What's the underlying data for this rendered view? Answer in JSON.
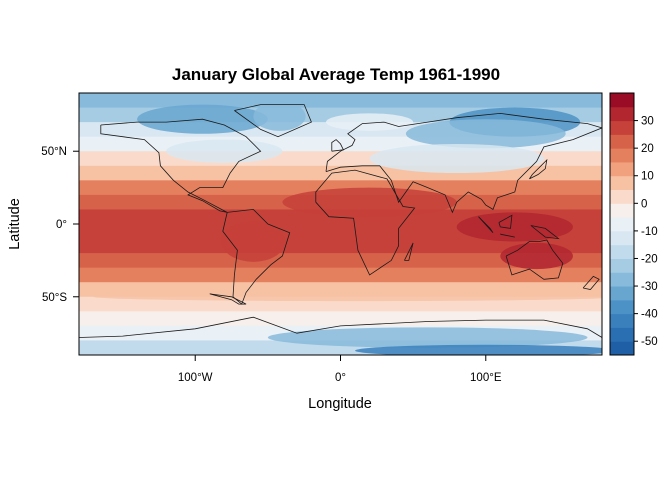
{
  "chart_data": {
    "type": "heatmap",
    "title": "January Global Average Temp 1961-1990",
    "xlabel": "Longitude",
    "ylabel": "Latitude",
    "x_ticks": [
      {
        "value": -100,
        "label": "100°W"
      },
      {
        "value": 0,
        "label": "0°"
      },
      {
        "value": 100,
        "label": "100°E"
      }
    ],
    "y_ticks": [
      {
        "value": 50,
        "label": "50°N"
      },
      {
        "value": 0,
        "label": "0°"
      },
      {
        "value": -50,
        "label": "50°S"
      }
    ],
    "xlim": [
      -180,
      180
    ],
    "ylim": [
      -90,
      90
    ],
    "colorbar": {
      "range": [
        -55,
        40
      ],
      "ticks": [
        30,
        20,
        10,
        0,
        -10,
        -20,
        -30,
        -40,
        -50
      ],
      "tick_labels": [
        "30",
        "20",
        "10",
        "0",
        "-10",
        "-20",
        "-30",
        "-40",
        "-50"
      ],
      "bins": [
        {
          "from": -55,
          "to": -50,
          "color": "#1e5fa6"
        },
        {
          "from": -50,
          "to": -45,
          "color": "#2b6fb3"
        },
        {
          "from": -45,
          "to": -40,
          "color": "#3a80bd"
        },
        {
          "from": -40,
          "to": -35,
          "color": "#4d92c6"
        },
        {
          "from": -35,
          "to": -30,
          "color": "#68a6d0"
        },
        {
          "from": -30,
          "to": -25,
          "color": "#87badb"
        },
        {
          "from": -25,
          "to": -20,
          "color": "#a6cce4"
        },
        {
          "from": -20,
          "to": -15,
          "color": "#c2dbec"
        },
        {
          "from": -15,
          "to": -10,
          "color": "#d8e7f1"
        },
        {
          "from": -10,
          "to": -5,
          "color": "#e9f0f6"
        },
        {
          "from": -5,
          "to": 0,
          "color": "#f6efeb"
        },
        {
          "from": 0,
          "to": 5,
          "color": "#fadbcb"
        },
        {
          "from": 5,
          "to": 10,
          "color": "#f7c2a4"
        },
        {
          "from": 10,
          "to": 15,
          "color": "#f1a17e"
        },
        {
          "from": 15,
          "to": 20,
          "color": "#e5805f"
        },
        {
          "from": 20,
          "to": 25,
          "color": "#d66249"
        },
        {
          "from": 25,
          "to": 30,
          "color": "#c6413a"
        },
        {
          "from": 30,
          "to": 35,
          "color": "#b22630"
        },
        {
          "from": 35,
          "to": 40,
          "color": "#9a0b25"
        }
      ]
    },
    "zonal_profile": {
      "latitudes": [
        85,
        75,
        65,
        55,
        45,
        35,
        25,
        15,
        5,
        -5,
        -15,
        -25,
        -35,
        -45,
        -55,
        -65,
        -75,
        -85
      ],
      "temperature": [
        -27,
        -22,
        -15,
        -6,
        1,
        9,
        17,
        24,
        27,
        27,
        26,
        23,
        16,
        9,
        3,
        -2,
        -10,
        -20
      ]
    },
    "continents_overlay": true,
    "grid": false,
    "legend_placement": "right"
  }
}
